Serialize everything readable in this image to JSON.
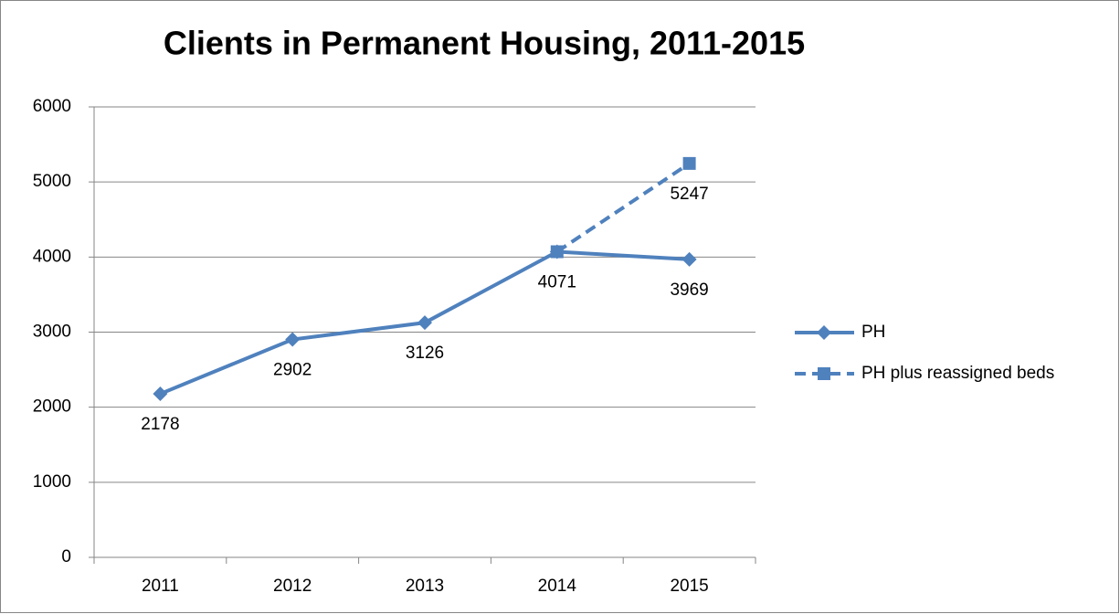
{
  "chart_data": {
    "type": "line",
    "title": "Clients in Permanent Housing, 2011-2015",
    "categories": [
      "2011",
      "2012",
      "2013",
      "2014",
      "2015"
    ],
    "series": [
      {
        "name": "PH",
        "color": "#4f81bd",
        "dash": false,
        "marker": "diamond",
        "values": [
          2178,
          2902,
          3126,
          4071,
          3969
        ]
      },
      {
        "name": "PH plus reassigned beds",
        "color": "#4f81bd",
        "dash": true,
        "marker": "square",
        "values": [
          null,
          null,
          null,
          4071,
          5247
        ]
      }
    ],
    "ylim": [
      0,
      6000
    ],
    "yticks": [
      0,
      1000,
      2000,
      3000,
      4000,
      5000,
      6000
    ],
    "grid": true,
    "legend": "right"
  }
}
